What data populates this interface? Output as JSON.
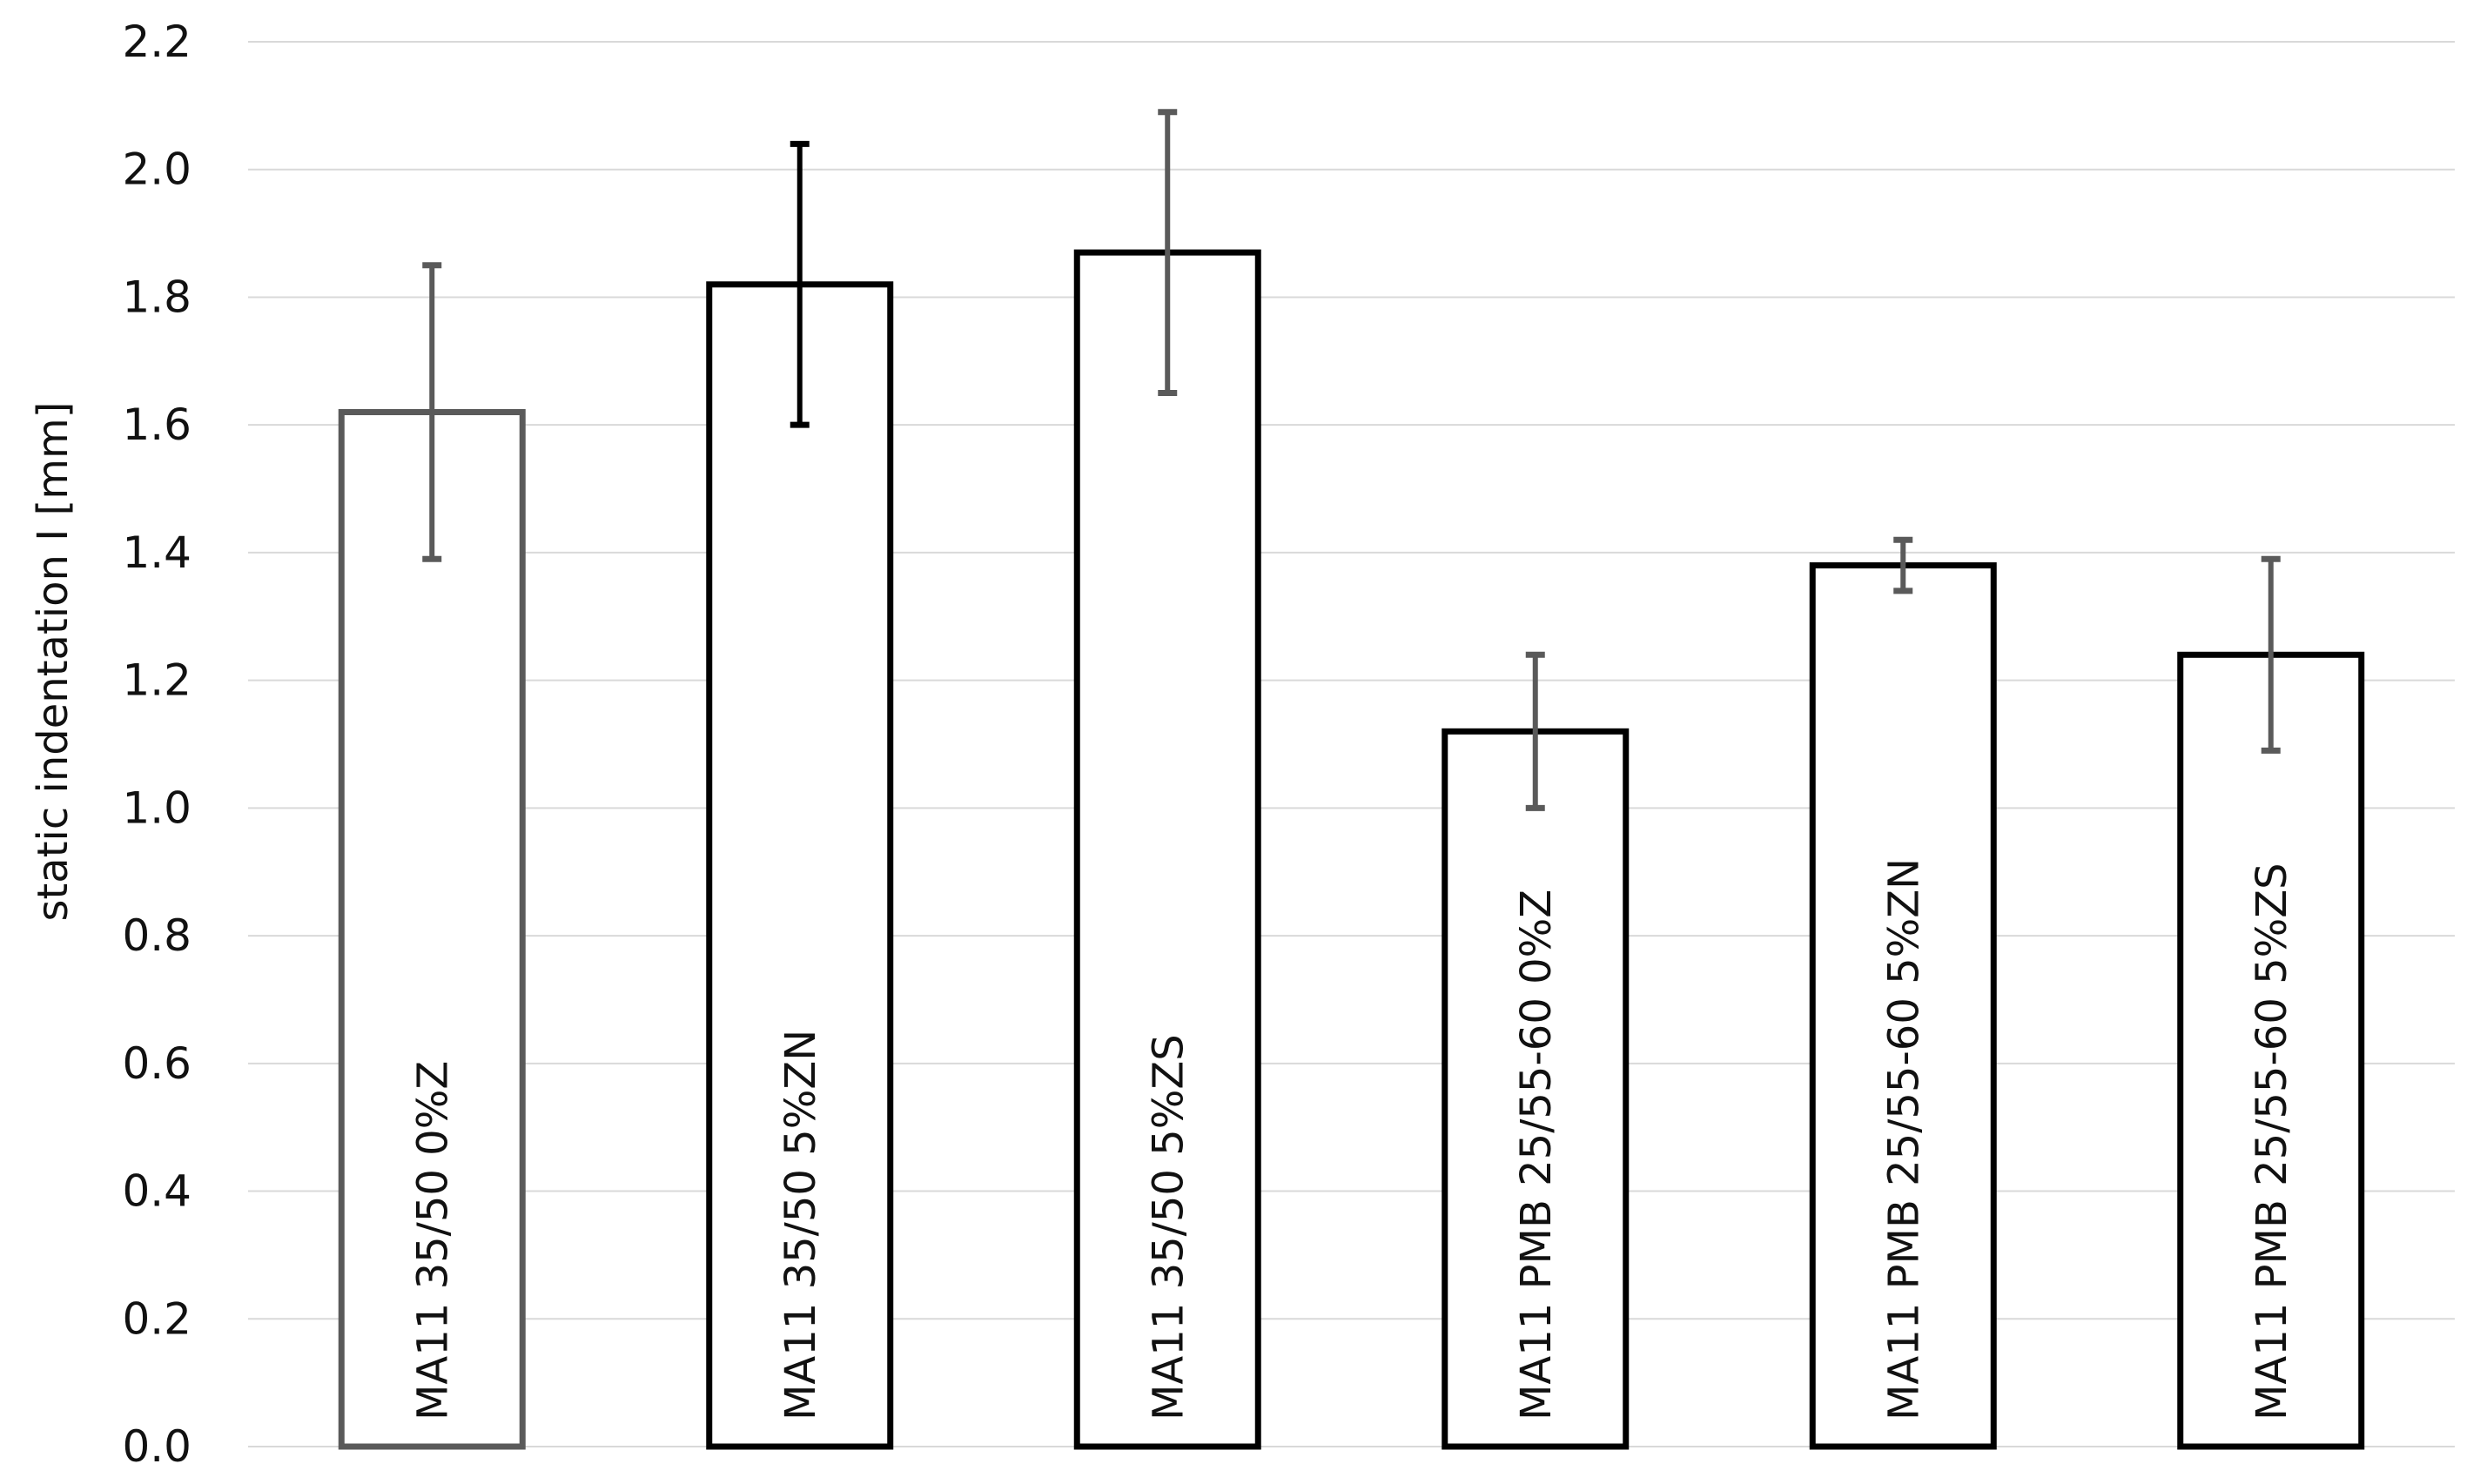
{
  "chart_data": {
    "type": "bar",
    "title": "",
    "xlabel": "",
    "ylabel": "static indentation I [mm]",
    "ylim": [
      0,
      2.2
    ],
    "ytick_step": 0.2,
    "ytick_labels": [
      "0.0",
      "0.2",
      "0.4",
      "0.6",
      "0.8",
      "1.0",
      "1.2",
      "1.4",
      "1.6",
      "1.8",
      "2.0",
      "2.2"
    ],
    "grid": true,
    "legend": "none",
    "categories": [
      "MA11 35/50 0%Z",
      "MA11 35/50 5%ZN",
      "MA11 35/50 5%ZS",
      "MA11 PMB 25/55-60 0%Z",
      "MA11 PMB 25/55-60 5%ZN",
      "MA11 PMB 25/55-60 5%ZS"
    ],
    "values": [
      1.62,
      1.82,
      1.87,
      1.12,
      1.38,
      1.24
    ],
    "error_low": [
      1.39,
      1.6,
      1.65,
      1.0,
      1.34,
      1.09
    ],
    "error_high": [
      1.85,
      2.04,
      2.09,
      1.24,
      1.42,
      1.39
    ],
    "bar_outline_colors": [
      "#5a5a5a",
      "#000000",
      "#000000",
      "#000000",
      "#000000",
      "#000000"
    ],
    "error_colors": [
      "#5a5a5a",
      "#000000",
      "#5a5a5a",
      "#5a5a5a",
      "#5a5a5a",
      "#5a5a5a"
    ],
    "grid_color": "#d9d9d9",
    "fill_color": "#ffffff"
  }
}
